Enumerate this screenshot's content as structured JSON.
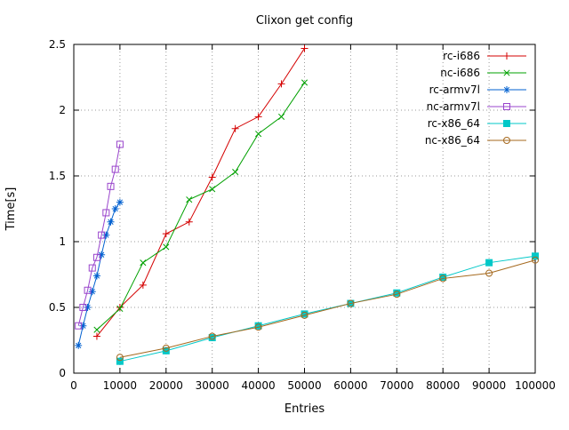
{
  "chart_data": {
    "type": "line",
    "title": "Clixon get config",
    "xlabel": "Entries",
    "ylabel": "Time[s]",
    "xlim": [
      0,
      100000
    ],
    "ylim": [
      0,
      2.5
    ],
    "xticks": [
      0,
      10000,
      20000,
      30000,
      40000,
      50000,
      60000,
      70000,
      80000,
      90000,
      100000
    ],
    "yticks": [
      0,
      0.5,
      1,
      1.5,
      2,
      2.5
    ],
    "grid": true,
    "grid_style": "dotted",
    "legend_position": "top-right-inside",
    "background": "#ffffff",
    "axis_color": "#000000",
    "grid_color": "#9b9b9b",
    "series": [
      {
        "name": "rc-i686",
        "color": "#d40000",
        "marker": "plus",
        "x": [
          5000,
          10000,
          15000,
          20000,
          25000,
          30000,
          35000,
          40000,
          45000,
          50000
        ],
        "y": [
          0.28,
          0.5,
          0.67,
          1.06,
          1.15,
          1.49,
          1.86,
          1.95,
          2.2,
          2.47
        ]
      },
      {
        "name": "nc-i686",
        "color": "#00a000",
        "marker": "cross",
        "x": [
          5000,
          10000,
          15000,
          20000,
          25000,
          30000,
          35000,
          40000,
          45000,
          50000
        ],
        "y": [
          0.33,
          0.49,
          0.84,
          0.96,
          1.32,
          1.4,
          1.53,
          1.82,
          1.95,
          2.21
        ]
      },
      {
        "name": "rc-armv7l",
        "color": "#0060d0",
        "marker": "asterisk",
        "x": [
          1000,
          2000,
          3000,
          4000,
          5000,
          6000,
          7000,
          8000,
          9000,
          10000
        ],
        "y": [
          0.21,
          0.36,
          0.5,
          0.62,
          0.74,
          0.9,
          1.05,
          1.15,
          1.25,
          1.3
        ]
      },
      {
        "name": "nc-armv7l",
        "color": "#9944cc",
        "marker": "open-square",
        "x": [
          1000,
          2000,
          3000,
          4000,
          5000,
          6000,
          7000,
          8000,
          9000,
          10000
        ],
        "y": [
          0.36,
          0.5,
          0.63,
          0.8,
          0.88,
          1.05,
          1.22,
          1.42,
          1.55,
          1.74
        ]
      },
      {
        "name": "rc-x86_64",
        "color": "#00c8c8",
        "marker": "filled-square",
        "x": [
          10000,
          20000,
          30000,
          40000,
          50000,
          60000,
          70000,
          80000,
          90000,
          100000
        ],
        "y": [
          0.09,
          0.17,
          0.27,
          0.36,
          0.45,
          0.53,
          0.61,
          0.73,
          0.84,
          0.89
        ]
      },
      {
        "name": "nc-x86_64",
        "color": "#a5691e",
        "marker": "open-circle",
        "x": [
          10000,
          20000,
          30000,
          40000,
          50000,
          60000,
          70000,
          80000,
          90000,
          100000
        ],
        "y": [
          0.12,
          0.19,
          0.28,
          0.35,
          0.44,
          0.53,
          0.6,
          0.72,
          0.76,
          0.86
        ]
      }
    ]
  }
}
